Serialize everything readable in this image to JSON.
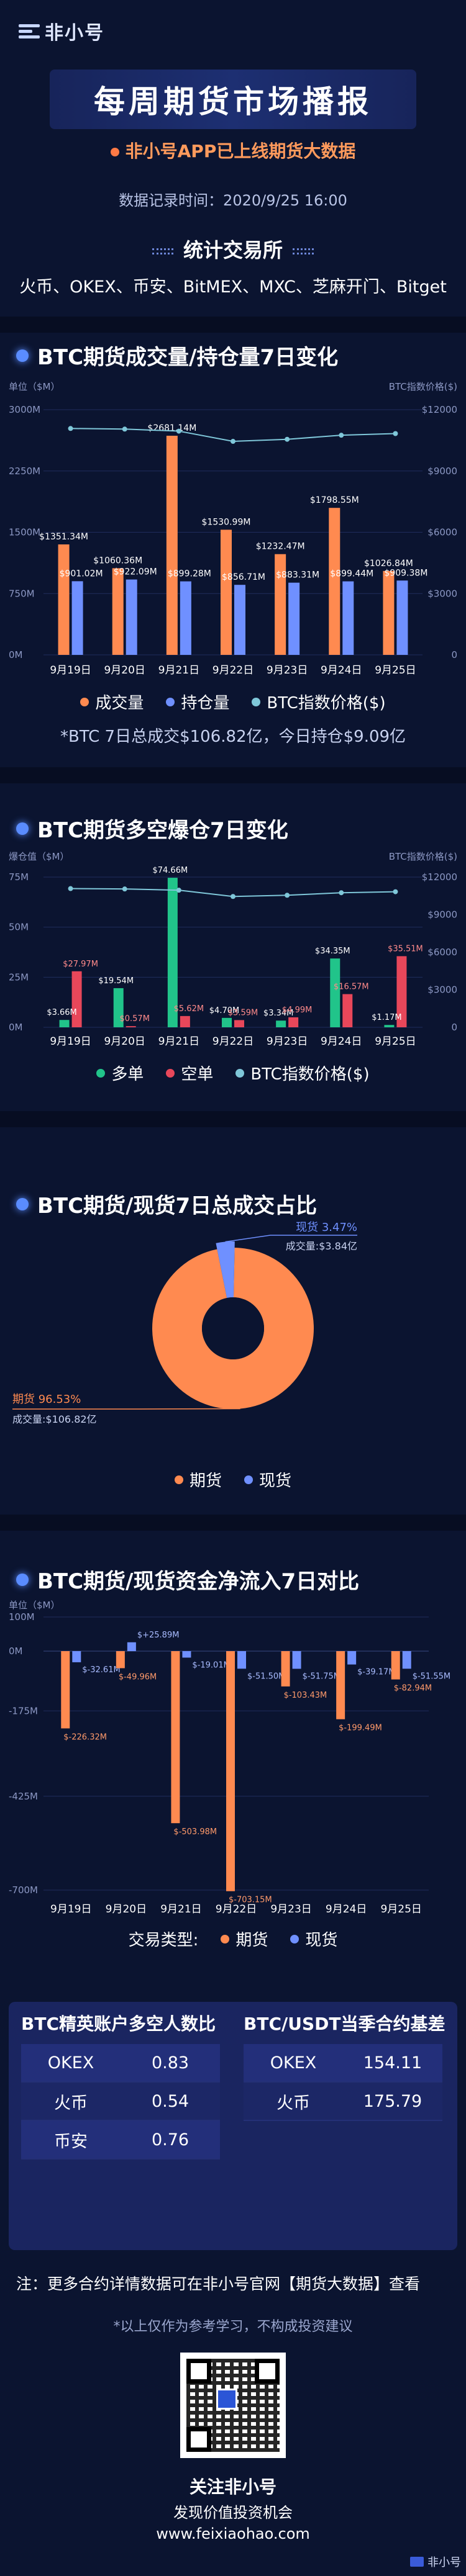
{
  "brand": {
    "logo_text": "非小号"
  },
  "header": {
    "title": "每周期货市场播报",
    "subtitle": "非小号APP已上线期货大数据",
    "record_time": "数据记录时间：2020/9/25 16:00",
    "exchanges_title": "统计交易所",
    "exchanges_list": "火币、OKEX、币安、BitMEX、MXC、芝麻开门、Bitget"
  },
  "colors": {
    "orange": "#ff8a50",
    "blue": "#6f90ff",
    "green": "#21c48a",
    "red": "#e8475a",
    "line": "#7fc7d9"
  },
  "section1": {
    "title": "BTC期货成交量/持仓量7日变化",
    "legend": [
      "成交量",
      "持仓量",
      "BTC指数价格($)"
    ],
    "note": "*BTC 7日总成交$106.82亿，今日持仓$9.09亿"
  },
  "section2": {
    "title": "BTC期货多空爆仓7日变化",
    "legend": [
      "多单",
      "空单",
      "BTC指数价格($)"
    ]
  },
  "section3": {
    "title": "BTC期货/现货7日总成交占比",
    "legend": [
      "期货",
      "现货"
    ]
  },
  "section4": {
    "title": "BTC期货/现货资金净流入7日对比",
    "legend_label": "交易类型:",
    "legend": [
      "期货",
      "现货"
    ]
  },
  "chart_data": [
    {
      "type": "bar",
      "title": "BTC期货成交量/持仓量7日变化",
      "ylabel_left": "单位（$M）",
      "ylabel_right": "BTC指数价格($)",
      "yticks_left": [
        "0M",
        "750M",
        "1500M",
        "2250M",
        "3000M"
      ],
      "yticks_right": [
        "0",
        "$3000",
        "$6000",
        "$9000",
        "$12000"
      ],
      "ylim": [
        0,
        3000
      ],
      "ylim_right": [
        0,
        12000
      ],
      "categories": [
        "9月19日",
        "9月20日",
        "9月21日",
        "9月22日",
        "9月23日",
        "9月24日",
        "9月25日"
      ],
      "series": [
        {
          "name": "成交量",
          "values": [
            1351.34,
            1060.36,
            2681.14,
            1530.99,
            1232.47,
            1798.55,
            1026.84
          ],
          "labels": [
            "$1351.34M",
            "$1060.36M",
            "$2681.14M",
            "$1530.99M",
            "$1232.47M",
            "$1798.55M",
            "$1026.84M"
          ]
        },
        {
          "name": "持仓量",
          "values": [
            901.02,
            922.09,
            899.28,
            856.71,
            883.31,
            899.44,
            909.38
          ],
          "labels": [
            "$901.02M",
            "$922.09M",
            "$899.28M",
            "$856.71M",
            "$883.31M",
            "$899.44M",
            "$909.38M"
          ]
        },
        {
          "name": "BTC指数价格($)",
          "values": [
            11080,
            11050,
            10950,
            10450,
            10550,
            10750,
            10830
          ]
        }
      ]
    },
    {
      "type": "bar",
      "title": "BTC期货多空爆仓7日变化",
      "ylabel_left": "爆仓值（$M）",
      "ylabel_right": "BTC指数价格($)",
      "yticks_left": [
        "0M",
        "25M",
        "50M",
        "75M"
      ],
      "yticks_right": [
        "0",
        "$3000",
        "$6000",
        "$9000",
        "$12000"
      ],
      "ylim": [
        0,
        75
      ],
      "ylim_right": [
        0,
        12000
      ],
      "categories": [
        "9月19日",
        "9月20日",
        "9月21日",
        "9月22日",
        "9月23日",
        "9月24日",
        "9月25日"
      ],
      "series": [
        {
          "name": "多单",
          "values": [
            3.66,
            19.54,
            74.66,
            4.7,
            3.34,
            34.35,
            1.17
          ],
          "labels": [
            "$3.66M",
            "$19.54M",
            "$74.66M",
            "$4.70M",
            "$3.34M",
            "$34.35M",
            "$1.17M"
          ]
        },
        {
          "name": "空单",
          "values": [
            27.97,
            0.57,
            5.62,
            3.59,
            4.99,
            16.57,
            35.51
          ],
          "labels": [
            "$27.97M",
            "$0.57M",
            "$5.62M",
            "$3.59M",
            "$4.99M",
            "$16.57M",
            "$35.51M"
          ]
        },
        {
          "name": "BTC指数价格($)",
          "values": [
            11080,
            11050,
            10950,
            10450,
            10550,
            10750,
            10830
          ]
        }
      ]
    },
    {
      "type": "pie",
      "title": "BTC期货/现货7日总成交占比",
      "slices": [
        {
          "name": "期货",
          "percent": 96.53,
          "label": "期货 96.53%",
          "sub": "成交量:$106.82亿"
        },
        {
          "name": "现货",
          "percent": 3.47,
          "label": "现货 3.47%",
          "sub": "成交量:$3.84亿"
        }
      ]
    },
    {
      "type": "bar",
      "title": "BTC期货/现货资金净流入7日对比",
      "ylabel_left": "单位（$M）",
      "yticks_left": [
        "-700M",
        "-425M",
        "-175M",
        "0M",
        "100M"
      ],
      "ylim": [
        -700,
        100
      ],
      "categories": [
        "9月19日",
        "9月20日",
        "9月21日",
        "9月22日",
        "9月23日",
        "9月24日",
        "9月25日"
      ],
      "series": [
        {
          "name": "期货",
          "values": [
            -226.32,
            -49.96,
            -503.98,
            -703.15,
            -103.43,
            -199.49,
            -82.94
          ],
          "labels": [
            "$-226.32M",
            "$-49.96M",
            "$-503.98M",
            "$-703.15M",
            "$-103.43M",
            "$-199.49M",
            "$-82.94M"
          ]
        },
        {
          "name": "现货",
          "values": [
            -32.61,
            25.89,
            -19.01,
            -51.5,
            -51.75,
            -39.17,
            -51.55
          ],
          "labels": [
            "$-32.61M",
            "$+25.89M",
            "$-19.01M",
            "$-51.50M",
            "$-51.75M",
            "$-39.17M",
            "$-51.55M"
          ]
        }
      ]
    }
  ],
  "panel": {
    "left_title": "BTC精英账户多空人数比",
    "right_title": "BTC/USDT当季合约基差",
    "left_rows": [
      {
        "name": "OKEX",
        "value": "0.83"
      },
      {
        "name": "火币",
        "value": "0.54"
      },
      {
        "name": "币安",
        "value": "0.76"
      }
    ],
    "right_rows": [
      {
        "name": "OKEX",
        "value": "154.11"
      },
      {
        "name": "火币",
        "value": "175.79"
      }
    ]
  },
  "footer": {
    "note": "注：更多合约详情数据可在非小号官网【期货大数据】查看",
    "disclaimer": "*以上仅作为参考学习，不构成投资建议",
    "follow": "关注非小号",
    "slogan": "发现价值投资机会",
    "site": "www.feixiaohao.com",
    "watermark": "非小号"
  }
}
